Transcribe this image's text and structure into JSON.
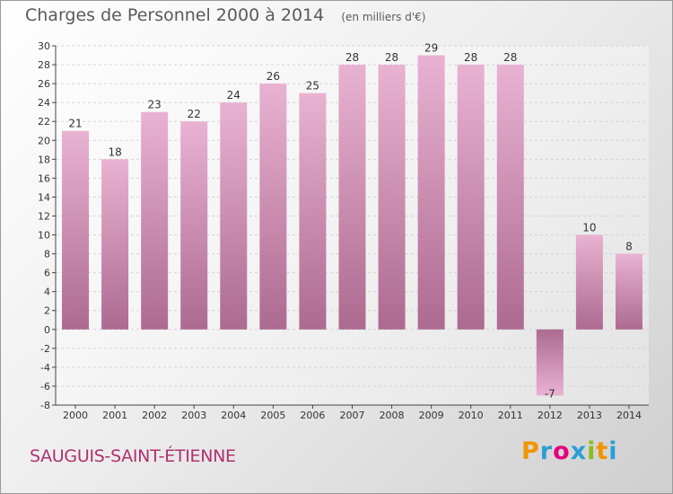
{
  "chart_data": {
    "type": "bar",
    "title": "Charges de Personnel 2000 à 2014",
    "unit_label": "(en milliers d'€)",
    "categories": [
      "2000",
      "2001",
      "2002",
      "2003",
      "2004",
      "2005",
      "2006",
      "2007",
      "2008",
      "2009",
      "2010",
      "2011",
      "2012",
      "2013",
      "2014"
    ],
    "values": [
      21,
      18,
      23,
      22,
      24,
      26,
      25,
      28,
      28,
      29,
      28,
      28,
      -7,
      10,
      8
    ],
    "data_labels": [
      "21",
      "18",
      "23",
      "22",
      "24",
      "26",
      "25",
      "28",
      "28",
      "29",
      "28",
      "28",
      "-7",
      "10",
      "8"
    ],
    "ylim": [
      -8,
      30
    ],
    "yticks": [
      -8,
      -6,
      -4,
      -2,
      0,
      2,
      4,
      6,
      8,
      10,
      12,
      14,
      16,
      18,
      20,
      22,
      24,
      26,
      28,
      30
    ],
    "grid": true,
    "legend": "none"
  },
  "footer": {
    "commune": "SAUGUIS-SAINT-ÉTIENNE",
    "brand_letters": [
      "P",
      "r",
      "o",
      "x",
      "i",
      "t",
      "i"
    ]
  },
  "colors": {
    "bar_light": "#e9b2d2",
    "bar_dark": "#ad6a90",
    "grid": "#d4d4d4",
    "commune": "#b0306f",
    "brand": [
      "#f29400",
      "#2a9fd6",
      "#e4007d",
      "#2a9fd6",
      "#8cbd1b",
      "#f29400",
      "#2a9fd6"
    ]
  }
}
